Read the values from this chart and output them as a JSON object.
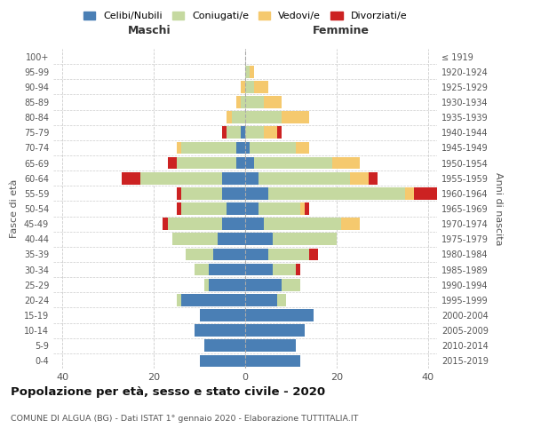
{
  "age_groups": [
    "0-4",
    "5-9",
    "10-14",
    "15-19",
    "20-24",
    "25-29",
    "30-34",
    "35-39",
    "40-44",
    "45-49",
    "50-54",
    "55-59",
    "60-64",
    "65-69",
    "70-74",
    "75-79",
    "80-84",
    "85-89",
    "90-94",
    "95-99",
    "100+"
  ],
  "birth_years": [
    "2015-2019",
    "2010-2014",
    "2005-2009",
    "2000-2004",
    "1995-1999",
    "1990-1994",
    "1985-1989",
    "1980-1984",
    "1975-1979",
    "1970-1974",
    "1965-1969",
    "1960-1964",
    "1955-1959",
    "1950-1954",
    "1945-1949",
    "1940-1944",
    "1935-1939",
    "1930-1934",
    "1925-1929",
    "1920-1924",
    "≤ 1919"
  ],
  "colors": {
    "celibi": "#4a7fb5",
    "coniugati": "#c5d9a0",
    "vedovi": "#f5c96e",
    "divorziati": "#cc2222"
  },
  "maschi": {
    "celibi": [
      10,
      9,
      11,
      10,
      14,
      8,
      8,
      7,
      6,
      5,
      4,
      5,
      5,
      2,
      2,
      1,
      0,
      0,
      0,
      0,
      0
    ],
    "coniugati": [
      0,
      0,
      0,
      0,
      1,
      1,
      3,
      6,
      10,
      12,
      10,
      9,
      18,
      13,
      12,
      3,
      3,
      1,
      0,
      0,
      0
    ],
    "vedovi": [
      0,
      0,
      0,
      0,
      0,
      0,
      0,
      0,
      0,
      0,
      0,
      0,
      0,
      0,
      1,
      0,
      1,
      1,
      1,
      0,
      0
    ],
    "divorziati": [
      0,
      0,
      0,
      0,
      0,
      0,
      0,
      0,
      0,
      1,
      1,
      1,
      4,
      2,
      0,
      1,
      0,
      0,
      0,
      0,
      0
    ]
  },
  "femmine": {
    "celibi": [
      12,
      11,
      13,
      15,
      7,
      8,
      6,
      5,
      6,
      4,
      3,
      5,
      3,
      2,
      1,
      0,
      0,
      0,
      0,
      0,
      0
    ],
    "coniugati": [
      0,
      0,
      0,
      0,
      2,
      4,
      5,
      9,
      14,
      17,
      9,
      30,
      20,
      17,
      10,
      4,
      8,
      4,
      2,
      1,
      0
    ],
    "vedovi": [
      0,
      0,
      0,
      0,
      0,
      0,
      0,
      0,
      0,
      4,
      1,
      2,
      4,
      6,
      3,
      3,
      6,
      4,
      3,
      1,
      0
    ],
    "divorziati": [
      0,
      0,
      0,
      0,
      0,
      0,
      1,
      2,
      0,
      0,
      1,
      6,
      2,
      0,
      0,
      1,
      0,
      0,
      0,
      0,
      0
    ]
  },
  "xlim": 42,
  "title": "Popolazione per età, sesso e stato civile - 2020",
  "subtitle": "COMUNE DI ALGUA (BG) - Dati ISTAT 1° gennaio 2020 - Elaborazione TUTTITALIA.IT",
  "xlabel_left": "Maschi",
  "xlabel_right": "Femmine",
  "ylabel": "Fasce di età",
  "ylabel_right": "Anni di nascita",
  "legend_labels": [
    "Celibi/Nubili",
    "Coniugati/e",
    "Vedovi/e",
    "Divorziati/e"
  ],
  "background_color": "#ffffff",
  "grid_color": "#cccccc"
}
